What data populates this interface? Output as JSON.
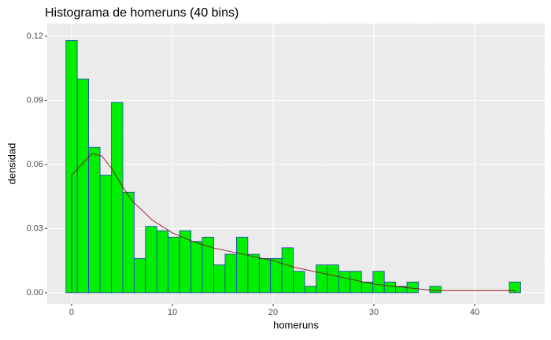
{
  "chart_data": {
    "type": "histogram",
    "title": "Histograma de homeruns (40 bins)",
    "x_label": "homeruns",
    "y_label": "densidad",
    "bins": [
      -0.56,
      0.56,
      1.69,
      2.82,
      3.95,
      5.08,
      6.21,
      7.33,
      8.46,
      9.59,
      10.72,
      11.85,
      12.97,
      14.1,
      15.23,
      16.36,
      17.49,
      18.62,
      19.74,
      20.87,
      22.0,
      23.13,
      24.26,
      25.38,
      26.51,
      27.64,
      28.77,
      29.9,
      31.03,
      32.15,
      33.28,
      34.41,
      35.54,
      36.67,
      37.79,
      38.92,
      40.05,
      41.18,
      42.31,
      43.44,
      44.56
    ],
    "values": [
      0.118,
      0.1,
      0.068,
      0.055,
      0.089,
      0.047,
      0.016,
      0.031,
      0.029,
      0.026,
      0.029,
      0.024,
      0.026,
      0.013,
      0.018,
      0.026,
      0.018,
      0.016,
      0.016,
      0.021,
      0.01,
      0.003,
      0.013,
      0.013,
      0.01,
      0.01,
      0.005,
      0.01,
      0.005,
      0.003,
      0.005,
      0,
      0.003,
      0,
      0,
      0,
      0,
      0,
      0,
      0.005
    ],
    "color": "#00ee00",
    "edge_color": "#1f3fbf",
    "density": {
      "color": "#8b0000",
      "x": [
        0,
        1,
        2,
        3,
        4,
        5,
        6,
        8,
        10,
        12,
        14,
        16,
        18,
        20,
        22,
        24,
        26,
        28,
        30,
        32,
        34,
        36,
        38,
        40,
        42,
        44
      ],
      "values": [
        0.055,
        0.06,
        0.065,
        0.064,
        0.058,
        0.05,
        0.043,
        0.034,
        0.028,
        0.024,
        0.021,
        0.019,
        0.017,
        0.015,
        0.012,
        0.01,
        0.008,
        0.006,
        0.004,
        0.003,
        0.002,
        0.001,
        0.001,
        0.001,
        0.001,
        0.001
      ]
    },
    "xlim": [
      -2.42,
      46.95
    ],
    "ylim": [
      -0.0052,
      0.1259
    ],
    "xticks": [
      0,
      10,
      20,
      30,
      40
    ],
    "yticks": [
      {
        "value": 0,
        "label": "0.00"
      },
      {
        "value": 0.03,
        "label": "0.03"
      },
      {
        "value": 0.06,
        "label": "0.06"
      },
      {
        "value": 0.09,
        "label": "0.09"
      },
      {
        "value": 0.12,
        "label": "0.12"
      }
    ],
    "grid": true
  }
}
